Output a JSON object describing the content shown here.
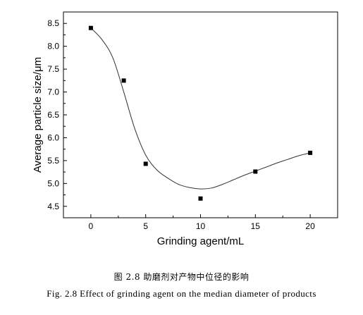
{
  "chart_data": {
    "type": "scatter",
    "xlabel": "Grinding agent/mL",
    "ylabel": "Average particle size/μm",
    "xlim": [
      -2.5,
      22.5
    ],
    "ylim": [
      4.25,
      8.75
    ],
    "x_ticks": [
      0,
      5,
      10,
      15,
      20
    ],
    "y_ticks": [
      4.5,
      5.0,
      5.5,
      6.0,
      6.5,
      7.0,
      7.5,
      8.0,
      8.5
    ],
    "x_tick_labels": [
      "0",
      "5",
      "10",
      "15",
      "20"
    ],
    "y_tick_labels": [
      "4.5",
      "5.0",
      "5.5",
      "6.0",
      "6.5",
      "7.0",
      "7.5",
      "8.0",
      "8.5"
    ],
    "grid": false,
    "marker": "filled-square",
    "marker_color": "#000000",
    "line_color": "#333333",
    "points": [
      {
        "x": 0,
        "y": 8.4
      },
      {
        "x": 3,
        "y": 7.25
      },
      {
        "x": 5,
        "y": 5.43
      },
      {
        "x": 10,
        "y": 4.67
      },
      {
        "x": 15,
        "y": 5.26
      },
      {
        "x": 20,
        "y": 5.67
      }
    ],
    "fit_curve": [
      {
        "x": 0,
        "y": 8.4
      },
      {
        "x": 1,
        "y": 8.15
      },
      {
        "x": 2,
        "y": 7.75
      },
      {
        "x": 3,
        "y": 7.0
      },
      {
        "x": 4,
        "y": 6.2
      },
      {
        "x": 5,
        "y": 5.62
      },
      {
        "x": 6,
        "y": 5.3
      },
      {
        "x": 7,
        "y": 5.12
      },
      {
        "x": 8,
        "y": 4.98
      },
      {
        "x": 9,
        "y": 4.91
      },
      {
        "x": 10,
        "y": 4.88
      },
      {
        "x": 11,
        "y": 4.9
      },
      {
        "x": 12,
        "y": 4.98
      },
      {
        "x": 13,
        "y": 5.08
      },
      {
        "x": 14,
        "y": 5.18
      },
      {
        "x": 15,
        "y": 5.27
      },
      {
        "x": 16,
        "y": 5.36
      },
      {
        "x": 17,
        "y": 5.45
      },
      {
        "x": 18,
        "y": 5.53
      },
      {
        "x": 19,
        "y": 5.61
      },
      {
        "x": 20,
        "y": 5.67
      }
    ]
  },
  "caption_cn": "图 2.8 助磨剂对产物中位径的影响",
  "caption_en": "Fig. 2.8 Effect of grinding agent on the median diameter of products"
}
